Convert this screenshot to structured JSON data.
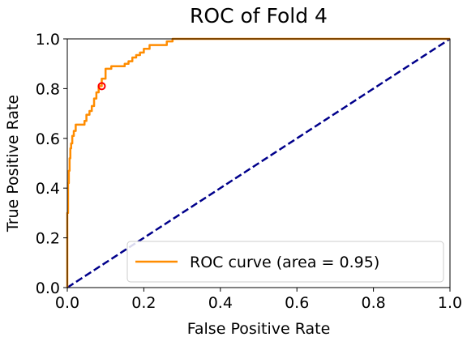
{
  "chart_data": {
    "type": "line",
    "title": "ROC of Fold 4",
    "xlabel": "False Positive Rate",
    "ylabel": "True Positive Rate",
    "xlim": [
      0.0,
      1.0
    ],
    "ylim": [
      0.0,
      1.0
    ],
    "xticks": [
      "0.0",
      "0.2",
      "0.4",
      "0.6",
      "0.8",
      "1.0"
    ],
    "yticks": [
      "0.0",
      "0.2",
      "0.4",
      "0.6",
      "0.8",
      "1.0"
    ],
    "grid": false,
    "legend_position": "lower-right",
    "series": [
      {
        "name": "ROC curve (area = 0.95)",
        "color": "#ff8c00",
        "style": "solid",
        "x": [
          0.0,
          0.0,
          0.002,
          0.002,
          0.004,
          0.004,
          0.006,
          0.006,
          0.008,
          0.008,
          0.01,
          0.01,
          0.013,
          0.013,
          0.017,
          0.017,
          0.022,
          0.022,
          0.045,
          0.045,
          0.05,
          0.05,
          0.058,
          0.058,
          0.064,
          0.064,
          0.07,
          0.07,
          0.076,
          0.076,
          0.082,
          0.082,
          0.09,
          0.09,
          0.1,
          0.1,
          0.115,
          0.115,
          0.15,
          0.15,
          0.16,
          0.16,
          0.17,
          0.17,
          0.18,
          0.18,
          0.19,
          0.19,
          0.2,
          0.2,
          0.215,
          0.215,
          0.26,
          0.26,
          0.275,
          0.275,
          1.0
        ],
        "y": [
          0.0,
          0.3,
          0.3,
          0.42,
          0.42,
          0.47,
          0.47,
          0.52,
          0.52,
          0.56,
          0.56,
          0.58,
          0.58,
          0.61,
          0.61,
          0.63,
          0.63,
          0.655,
          0.655,
          0.67,
          0.67,
          0.695,
          0.695,
          0.71,
          0.71,
          0.73,
          0.73,
          0.76,
          0.76,
          0.785,
          0.785,
          0.81,
          0.81,
          0.84,
          0.84,
          0.88,
          0.88,
          0.89,
          0.89,
          0.9,
          0.9,
          0.91,
          0.91,
          0.925,
          0.925,
          0.935,
          0.935,
          0.945,
          0.945,
          0.96,
          0.96,
          0.975,
          0.975,
          0.99,
          0.99,
          1.0,
          1.0
        ]
      },
      {
        "name": "",
        "color": "#00008b",
        "style": "dashed",
        "x": [
          0.0,
          1.0
        ],
        "y": [
          0.0,
          1.0
        ]
      }
    ],
    "marker": {
      "x": 0.09,
      "y": 0.81,
      "color": "#ff0000"
    }
  }
}
